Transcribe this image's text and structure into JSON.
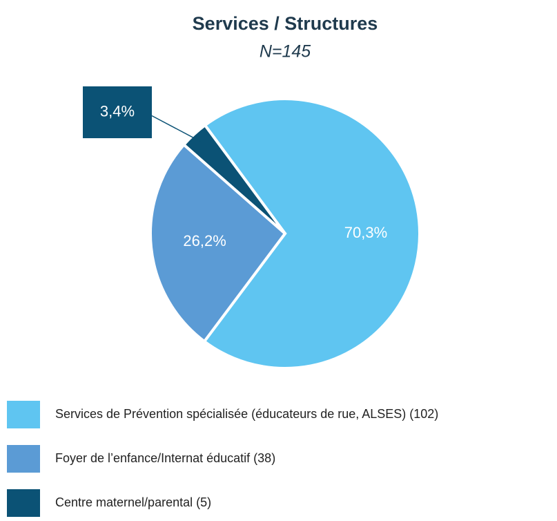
{
  "chart_data": {
    "type": "pie",
    "title": "Services / Structures",
    "subtitle": "N=145",
    "categories": [
      "Services de Prévention spécialisée (éducateurs de rue, ALSES) (102)",
      "Foyer de l’enfance/Internat éducatif (38)",
      "Centre maternel/parental (5)"
    ],
    "values": [
      70.3,
      26.2,
      3.4
    ],
    "value_labels": [
      "70,3%",
      "26,2%",
      "3,4%"
    ],
    "colors": [
      "#5fc5f1",
      "#5b9bd5",
      "#0b5275"
    ]
  }
}
